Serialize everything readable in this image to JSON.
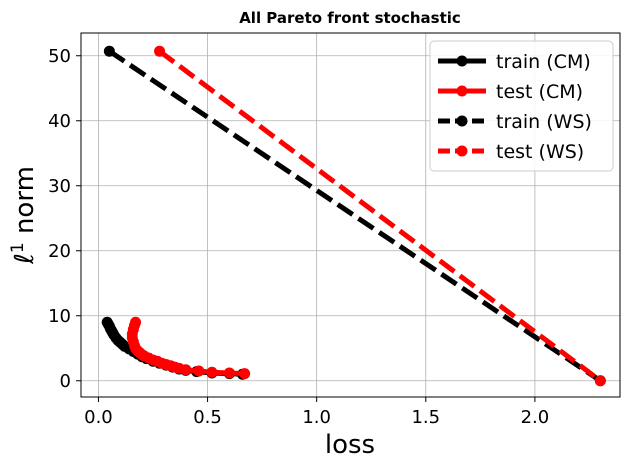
{
  "chart_data": {
    "type": "line",
    "title": "All Pareto front stochastic",
    "xlabel": "loss",
    "ylabel_main": "ℓ",
    "ylabel_sup": "1",
    "ylabel_rest": " norm",
    "xlim": [
      -0.08,
      2.39
    ],
    "ylim": [
      -2.5,
      53.5
    ],
    "xticks": [
      0.0,
      0.5,
      1.0,
      1.5,
      2.0
    ],
    "xtick_labels": [
      "0.0",
      "0.5",
      "1.0",
      "1.5",
      "2.0"
    ],
    "yticks": [
      0,
      10,
      20,
      30,
      40,
      50
    ],
    "ytick_labels": [
      "0",
      "10",
      "20",
      "30",
      "40",
      "50"
    ],
    "grid": true,
    "legend_position": "top-right",
    "series": [
      {
        "name": "train (CM)",
        "color": "#000000",
        "style": "solid",
        "x": [
          0.04,
          0.045,
          0.05,
          0.055,
          0.06,
          0.065,
          0.07,
          0.08,
          0.09,
          0.1,
          0.11,
          0.12,
          0.14,
          0.16,
          0.18,
          0.2,
          0.22,
          0.25,
          0.28,
          0.31,
          0.34,
          0.37,
          0.4,
          0.45,
          0.52,
          0.6,
          0.66
        ],
        "y": [
          9.0,
          8.7,
          8.4,
          8.0,
          7.7,
          7.4,
          7.1,
          6.6,
          6.2,
          5.9,
          5.6,
          5.3,
          4.9,
          4.5,
          4.1,
          3.7,
          3.4,
          3.0,
          2.7,
          2.4,
          2.1,
          1.8,
          1.6,
          1.4,
          1.2,
          1.1,
          1.0
        ]
      },
      {
        "name": "test (CM)",
        "color": "#ff0000",
        "style": "solid",
        "x": [
          0.17,
          0.165,
          0.16,
          0.155,
          0.155,
          0.16,
          0.165,
          0.17,
          0.18,
          0.19,
          0.2,
          0.21,
          0.23,
          0.25,
          0.27,
          0.29,
          0.31,
          0.33,
          0.35,
          0.37,
          0.4,
          0.46,
          0.52,
          0.6,
          0.67
        ],
        "y": [
          9.0,
          8.5,
          7.9,
          7.2,
          6.6,
          6.0,
          5.4,
          5.0,
          4.6,
          4.3,
          4.0,
          3.8,
          3.5,
          3.2,
          3.0,
          2.7,
          2.5,
          2.3,
          2.1,
          1.9,
          1.7,
          1.5,
          1.3,
          1.2,
          1.1
        ]
      },
      {
        "name": "train (WS)",
        "color": "#000000",
        "style": "dashed",
        "x": [
          0.05,
          2.3
        ],
        "y": [
          50.7,
          0.0
        ]
      },
      {
        "name": "test (WS)",
        "color": "#ff0000",
        "style": "dashed",
        "x": [
          0.28,
          2.3
        ],
        "y": [
          50.7,
          0.0
        ]
      }
    ]
  }
}
